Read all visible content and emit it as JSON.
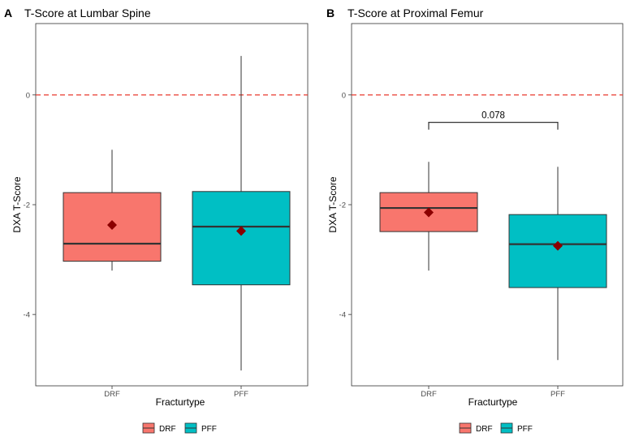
{
  "chart_data": [
    {
      "type": "box",
      "panel_label": "A",
      "title": "T-Score at Lumbar Spine",
      "xlabel": "Fracturtype",
      "ylabel": "DXA T-Score",
      "categories": [
        "DRF",
        "PFF"
      ],
      "yticks": [
        "0",
        "-2",
        "-4"
      ],
      "ytick_values": [
        0,
        -2,
        -4
      ],
      "ylim": [
        -5.3,
        1.3
      ],
      "reference_line": {
        "y": 0,
        "style": "dashed",
        "color": "#e8382e"
      },
      "boxes": [
        {
          "category": "DRF",
          "min": -3.2,
          "q1": -3.03,
          "median": -2.71,
          "q3": -1.78,
          "max": -1.0,
          "mean": -2.37,
          "color": "#f8766d"
        },
        {
          "category": "PFF",
          "min": -5.02,
          "q1": -3.46,
          "median": -2.4,
          "q3": -1.76,
          "max": 0.71,
          "mean": -2.48,
          "color": "#00bfc4"
        }
      ],
      "annotation": null,
      "legend": {
        "position": "bottom",
        "items": [
          {
            "name": "DRF",
            "color": "#f8766d"
          },
          {
            "name": "PFF",
            "color": "#00bfc4"
          }
        ]
      },
      "grid": false
    },
    {
      "type": "box",
      "panel_label": "B",
      "title": "T-Score at Proximal Femur",
      "xlabel": "Fracturtype",
      "ylabel": "DXA T-Score",
      "categories": [
        "DRF",
        "PFF"
      ],
      "yticks": [
        "0",
        "-2",
        "-4"
      ],
      "ytick_values": [
        0,
        -2,
        -4
      ],
      "ylim": [
        -5.3,
        1.3
      ],
      "reference_line": {
        "y": 0,
        "style": "dashed",
        "color": "#e8382e"
      },
      "boxes": [
        {
          "category": "DRF",
          "min": -3.2,
          "q1": -2.49,
          "median": -2.06,
          "q3": -1.78,
          "max": -1.22,
          "mean": -2.14,
          "color": "#f8766d"
        },
        {
          "category": "PFF",
          "min": -4.83,
          "q1": -3.51,
          "median": -2.72,
          "q3": -2.18,
          "max": -1.31,
          "mean": -2.75,
          "color": "#00bfc4"
        }
      ],
      "annotation": {
        "text": "0.078",
        "y": -0.5
      },
      "legend": {
        "position": "bottom",
        "items": [
          {
            "name": "DRF",
            "color": "#f8766d"
          },
          {
            "name": "PFF",
            "color": "#00bfc4"
          }
        ]
      },
      "grid": false
    }
  ]
}
